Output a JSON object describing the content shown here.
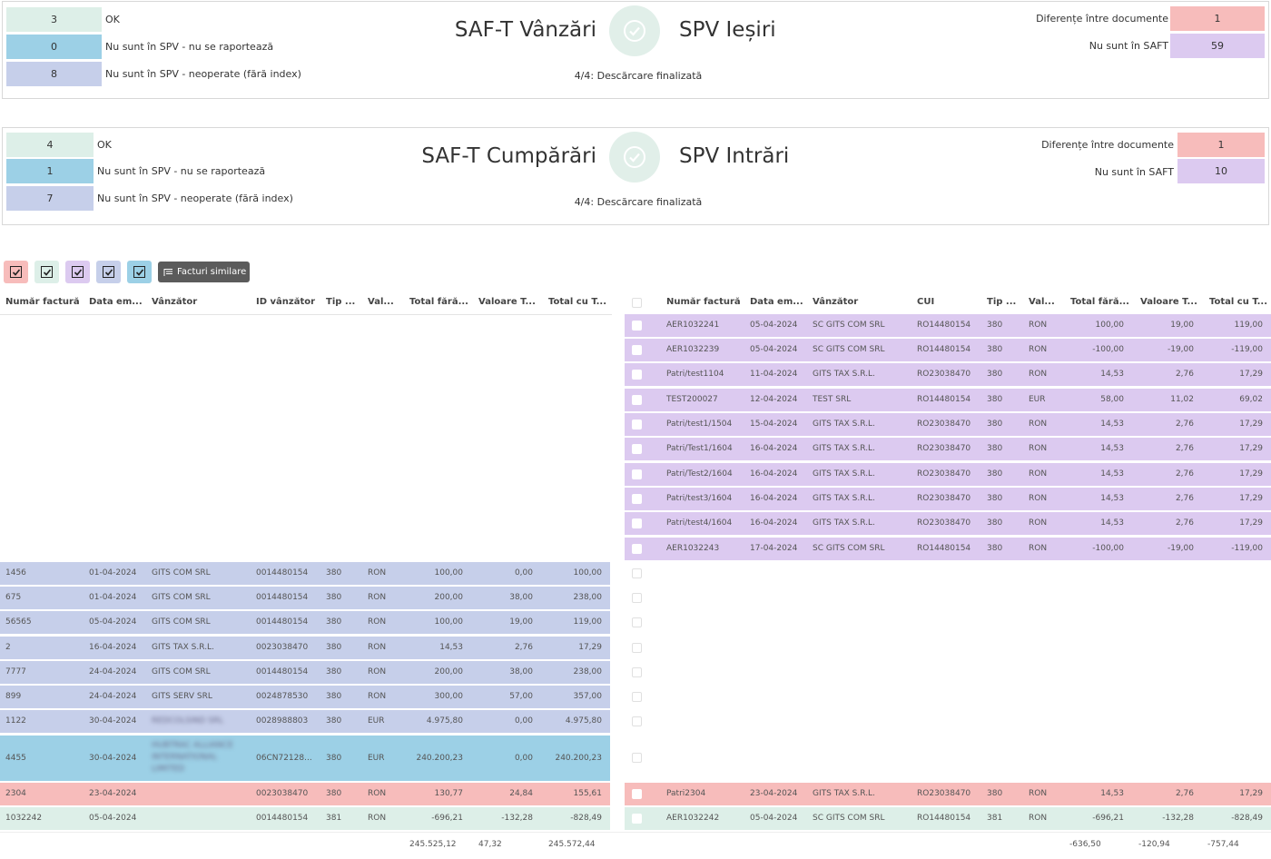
{
  "sales_panel": {
    "left": [
      {
        "count": "3",
        "label": "OK",
        "color": "#ddefe8"
      },
      {
        "count": "0",
        "label": "Nu sunt în SPV - nu se raportează",
        "color": "#9cd0e6"
      },
      {
        "count": "8",
        "label": "Nu sunt în SPV - neoperate (fără index)",
        "color": "#c6cfea"
      }
    ],
    "title_left": "SAF-T Vânzări",
    "title_right": "SPV Ieșiri",
    "status": "4/4: Descărcare finalizată",
    "right": [
      {
        "label": "Diferențe între documente",
        "value": "1",
        "color": "#f7bcbb"
      },
      {
        "label": "Nu sunt în SAFT",
        "value": "59",
        "color": "#dccaf0"
      }
    ]
  },
  "purchases_panel": {
    "left": [
      {
        "count": "4",
        "label": "OK",
        "color": "#ddefe8"
      },
      {
        "count": "1",
        "label": "Nu sunt în SPV - nu se raportează",
        "color": "#9cd0e6"
      },
      {
        "count": "7",
        "label": "Nu sunt în SPV - neoperate (fără index)",
        "color": "#c6cfea"
      }
    ],
    "title_left": "SAF-T Cumpărări",
    "title_right": "SPV Intrări",
    "status": "4/4: Descărcare finalizată",
    "right": [
      {
        "label": "Diferențe între documente",
        "value": "1",
        "color": "#f7bcbb"
      },
      {
        "label": "Nu sunt în SAFT",
        "value": "10",
        "color": "#dccaf0"
      }
    ]
  },
  "filters": [
    {
      "color": "#f7bcbb",
      "icon": "checkbox-checked-icon"
    },
    {
      "color": "#ddefe8",
      "icon": "checkbox-checked-icon"
    },
    {
      "color": "#dccaf0",
      "icon": "checkbox-checked-icon"
    },
    {
      "color": "#c6cfea",
      "icon": "checkbox-checked-icon"
    },
    {
      "color": "#9cd0e6",
      "icon": "checkbox-checked-icon"
    }
  ],
  "similar_button": {
    "label": "Facturi similare",
    "icon": "list-icon"
  },
  "left_table": {
    "headers": [
      "Număr factură",
      "Data em...",
      "Vânzător",
      "ID vânzător",
      "Tip ...",
      "Val...",
      "Total fără...",
      "Valoare T...",
      "Total cu T..."
    ],
    "rows": [
      {
        "color": "#c6cfea",
        "cells": [
          "1456",
          "01-04-2024",
          "GITS COM SRL",
          "0014480154",
          "380",
          "RON",
          "100,00",
          "0,00",
          "100,00"
        ]
      },
      {
        "color": "#c6cfea",
        "cells": [
          "675",
          "01-04-2024",
          "GITS COM SRL",
          "0014480154",
          "380",
          "RON",
          "200,00",
          "38,00",
          "238,00"
        ]
      },
      {
        "color": "#c6cfea",
        "cells": [
          "56565",
          "05-04-2024",
          "GITS COM SRL",
          "0014480154",
          "380",
          "RON",
          "100,00",
          "19,00",
          "119,00"
        ]
      },
      {
        "color": "#c6cfea",
        "cells": [
          "2",
          "16-04-2024",
          "GITS TAX S.R.L.",
          "0023038470",
          "380",
          "RON",
          "14,53",
          "2,76",
          "17,29"
        ]
      },
      {
        "color": "#c6cfea",
        "cells": [
          "7777",
          "24-04-2024",
          "GITS COM SRL",
          "0014480154",
          "380",
          "RON",
          "200,00",
          "38,00",
          "238,00"
        ]
      },
      {
        "color": "#c6cfea",
        "cells": [
          "899",
          "24-04-2024",
          "GITS SERV SRL",
          "0024878530",
          "380",
          "RON",
          "300,00",
          "57,00",
          "357,00"
        ]
      },
      {
        "color": "#c6cfea",
        "cells": [
          "1122",
          "30-04-2024",
          "REDCOLSIND SRL",
          "0028988803",
          "380",
          "EUR",
          "4.975,80",
          "0,00",
          "4.975,80"
        ]
      },
      {
        "color": "#9cd0e6",
        "cells": [
          "4455",
          "30-04-2024",
          "HUBTRAC ALLIANCE INTERNATIONAL LIMITED",
          "06CN72128...",
          "380",
          "EUR",
          "240.200,23",
          "0,00",
          "240.200,23"
        ]
      },
      {
        "color": "#f7bcbb",
        "cells": [
          "2304",
          "23-04-2024",
          "",
          "0023038470",
          "380",
          "RON",
          "130,77",
          "24,84",
          "155,61"
        ]
      },
      {
        "color": "#ddefe8",
        "cells": [
          "1032242",
          "05-04-2024",
          "",
          "0014480154",
          "381",
          "RON",
          "-696,21",
          "-132,28",
          "-828,49"
        ]
      }
    ],
    "totals": [
      "245.525,12",
      "47,32",
      "245.572,44"
    ]
  },
  "right_table": {
    "headers": [
      "Număr factură",
      "Data em...",
      "Vânzător",
      "CUI",
      "Tip ...",
      "Val...",
      "Total fără...",
      "Valoare T...",
      "Total cu T..."
    ],
    "rows": [
      {
        "color": "#dccaf0",
        "cells": [
          "AER1032241",
          "05-04-2024",
          "SC GITS COM SRL",
          "RO14480154",
          "380",
          "RON",
          "100,00",
          "19,00",
          "119,00"
        ]
      },
      {
        "color": "#dccaf0",
        "cells": [
          "AER1032239",
          "05-04-2024",
          "SC GITS COM SRL",
          "RO14480154",
          "380",
          "RON",
          "-100,00",
          "-19,00",
          "-119,00"
        ]
      },
      {
        "color": "#dccaf0",
        "cells": [
          "Patri/test1104",
          "11-04-2024",
          "GITS TAX S.R.L.",
          "RO23038470",
          "380",
          "RON",
          "14,53",
          "2,76",
          "17,29"
        ]
      },
      {
        "color": "#dccaf0",
        "cells": [
          "TEST200027",
          "12-04-2024",
          "TEST SRL",
          "RO14480154",
          "380",
          "EUR",
          "58,00",
          "11,02",
          "69,02"
        ]
      },
      {
        "color": "#dccaf0",
        "cells": [
          "Patri/test1/1504",
          "15-04-2024",
          "GITS TAX S.R.L.",
          "RO23038470",
          "380",
          "RON",
          "14,53",
          "2,76",
          "17,29"
        ]
      },
      {
        "color": "#dccaf0",
        "cells": [
          "Patri/Test1/1604",
          "16-04-2024",
          "GITS TAX S.R.L.",
          "RO23038470",
          "380",
          "RON",
          "14,53",
          "2,76",
          "17,29"
        ]
      },
      {
        "color": "#dccaf0",
        "cells": [
          "Patri/Test2/1604",
          "16-04-2024",
          "GITS TAX S.R.L.",
          "RO23038470",
          "380",
          "RON",
          "14,53",
          "2,76",
          "17,29"
        ]
      },
      {
        "color": "#dccaf0",
        "cells": [
          "Patri/test3/1604",
          "16-04-2024",
          "GITS TAX S.R.L.",
          "RO23038470",
          "380",
          "RON",
          "14,53",
          "2,76",
          "17,29"
        ]
      },
      {
        "color": "#dccaf0",
        "cells": [
          "Patri/test4/1604",
          "16-04-2024",
          "GITS TAX S.R.L.",
          "RO23038470",
          "380",
          "RON",
          "14,53",
          "2,76",
          "17,29"
        ]
      },
      {
        "color": "#dccaf0",
        "cells": [
          "AER1032243",
          "17-04-2024",
          "SC GITS COM SRL",
          "RO14480154",
          "380",
          "RON",
          "-100,00",
          "-19,00",
          "-119,00"
        ]
      },
      {
        "color": "#f7bcbb",
        "cells": [
          "Patri2304",
          "23-04-2024",
          "GITS TAX S.R.L.",
          "RO23038470",
          "380",
          "RON",
          "14,53",
          "2,76",
          "17,29"
        ]
      },
      {
        "color": "#ddefe8",
        "cells": [
          "AER1032242",
          "05-04-2024",
          "SC GITS COM SRL",
          "RO14480154",
          "381",
          "RON",
          "-696,21",
          "-132,28",
          "-828,49"
        ]
      }
    ],
    "totals": [
      "-636,50",
      "-120,94",
      "-757,44"
    ]
  }
}
